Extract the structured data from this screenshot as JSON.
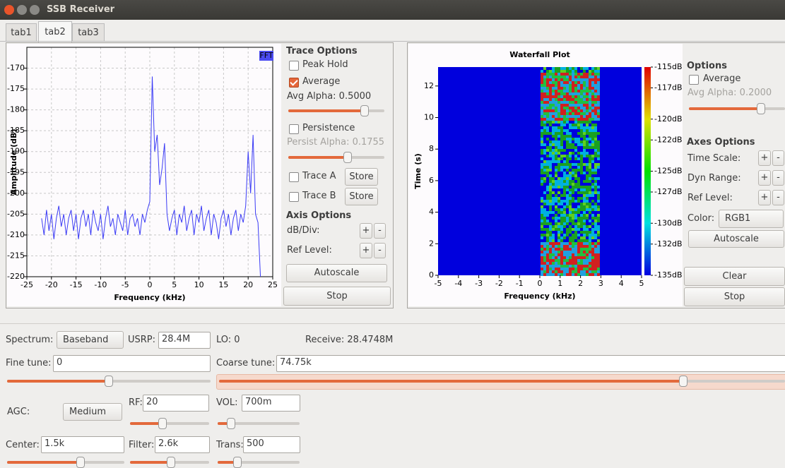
{
  "ui": {
    "window_title": "SSB Receiver",
    "tabs": [
      "tab1",
      "tab2",
      "tab3"
    ],
    "fft_options": {
      "title": "Trace Options",
      "peak_hold": {
        "label": "Peak Hold",
        "checked": false
      },
      "average": {
        "label": "Average",
        "checked": true
      },
      "avg_alpha": "Avg Alpha: 0.5000",
      "persistence": {
        "label": "Persistence",
        "checked": false
      },
      "persist_alpha": "Persist Alpha: 0.1755",
      "trace_a": {
        "label": "Trace A",
        "checked": false
      },
      "store_a": "Store",
      "trace_b": {
        "label": "Trace B",
        "checked": false
      },
      "store_b": "Store",
      "axis_options": "Axis Options",
      "db_div": "dB/Div:",
      "plus": "+",
      "minus": "-",
      "ref_level": "Ref Level:",
      "autoscale": "Autoscale",
      "stop": "Stop"
    },
    "waterfall_options": {
      "options": "Options",
      "average": {
        "label": "Average",
        "checked": false
      },
      "avg_alpha": "Avg Alpha: 0.2000",
      "axes_options": "Axes Options",
      "time_scale": "Time Scale:",
      "dyn_range": "Dyn Range:",
      "ref_level": "Ref Level:",
      "color_label": "Color:",
      "color_value": "RGB1",
      "autoscale": "Autoscale",
      "clear": "Clear",
      "stop": "Stop"
    },
    "controls": {
      "spectrum_label": "Spectrum:",
      "spectrum_value": "Baseband",
      "usrp_label": "USRP:",
      "usrp_value": "28.4M",
      "lo": "LO: 0",
      "receive": "Receive: 28.4748M",
      "fine_tune_label": "Fine tune:",
      "fine_tune_value": "0",
      "coarse_tune_label": "Coarse tune:",
      "coarse_tune_value": "74.75k",
      "agc_label": "AGC:",
      "agc_value": "Medium",
      "rf_label": "RF:",
      "rf_value": "20",
      "vol_label": "VOL:",
      "vol_value": "700m",
      "center_label": "Center:",
      "center_value": "1.5k",
      "filter_label": "Filter:",
      "filter_value": "2.6k",
      "trans_label": "Trans:",
      "trans_value": "500"
    }
  },
  "chart_data": [
    {
      "type": "line",
      "badge": "FFT",
      "xlabel": "Frequency (kHz)",
      "ylabel": "Amplitude (dB)",
      "xlim": [
        -25,
        25
      ],
      "ylim": [
        -220,
        -165
      ],
      "xticks": [
        -25,
        -20,
        -15,
        -10,
        -5,
        0,
        5,
        10,
        15,
        20,
        25
      ],
      "yticks": [
        -220,
        -215,
        -210,
        -205,
        -200,
        -195,
        -190,
        -185,
        -180,
        -175,
        -170
      ],
      "grid": true,
      "color": "#3b3bf5",
      "x": [
        -22,
        -21.5,
        -21,
        -20.5,
        -20,
        -19.5,
        -19,
        -18.5,
        -18,
        -17.5,
        -17,
        -16.5,
        -16,
        -15.5,
        -15,
        -14.5,
        -14,
        -13.5,
        -13,
        -12.5,
        -12,
        -11.5,
        -11,
        -10.5,
        -10,
        -9.5,
        -9,
        -8.5,
        -8,
        -7.5,
        -7,
        -6.5,
        -6,
        -5.5,
        -5,
        -4.5,
        -4,
        -3.5,
        -3,
        -2.5,
        -2,
        -1.5,
        -1,
        -0.5,
        0,
        0.5,
        1,
        1.5,
        2,
        2.5,
        3,
        3.5,
        4,
        4.5,
        5,
        5.5,
        6,
        6.5,
        7,
        7.5,
        8,
        8.5,
        9,
        9.5,
        10,
        10.5,
        11,
        11.5,
        12,
        12.5,
        13,
        13.5,
        14,
        14.5,
        15,
        15.5,
        16,
        16.5,
        17,
        17.5,
        18,
        18.5,
        19,
        19.5,
        20,
        20.5,
        21,
        21.5,
        22,
        22.5
      ],
      "values": [
        -206,
        -210,
        -204,
        -209,
        -205,
        -211,
        -206,
        -203,
        -208,
        -205,
        -210,
        -206,
        -204,
        -209,
        -205,
        -211,
        -206,
        -204,
        -208,
        -205,
        -210,
        -204,
        -207,
        -209,
        -205,
        -211,
        -206,
        -203,
        -208,
        -206,
        -210,
        -205,
        -207,
        -209,
        -204,
        -210,
        -206,
        -205,
        -208,
        -206,
        -210,
        -205,
        -207,
        -204,
        -202,
        -172,
        -190,
        -186,
        -198,
        -194,
        -188,
        -205,
        -209,
        -206,
        -204,
        -210,
        -205,
        -207,
        -203,
        -209,
        -206,
        -204,
        -210,
        -205,
        -207,
        -203,
        -209,
        -206,
        -204,
        -210,
        -205,
        -207,
        -211,
        -206,
        -204,
        -208,
        -205,
        -210,
        -206,
        -204,
        -209,
        -205,
        -207,
        -203,
        -190,
        -200,
        -186,
        -205,
        -207,
        -220
      ]
    },
    {
      "type": "waterfall",
      "title": "Waterfall Plot",
      "xlabel": "Frequency (kHz)",
      "ylabel": "Time (s)",
      "xlim": [
        -5,
        5
      ],
      "ylim": [
        0,
        13.2
      ],
      "xticks": [
        -5,
        -4,
        -3,
        -2,
        -1,
        0,
        1,
        2,
        3,
        4,
        5
      ],
      "yticks": [
        0,
        2,
        4,
        6,
        8,
        10,
        12
      ],
      "background": "#0000dd",
      "colorbar": {
        "lim": [
          -135,
          -115
        ],
        "ticks": [
          {
            "value": -115,
            "label": "-115dB"
          },
          {
            "value": -117,
            "label": "-117dB"
          },
          {
            "value": -120,
            "label": "-120dB"
          },
          {
            "value": -122,
            "label": "-122dB"
          },
          {
            "value": -125,
            "label": "-125dB"
          },
          {
            "value": -127,
            "label": "-127dB"
          },
          {
            "value": -130,
            "label": "-130dB"
          },
          {
            "value": -132,
            "label": "-132dB"
          },
          {
            "value": -135,
            "label": "-135dB"
          }
        ],
        "colors": [
          "#e00000",
          "#e0e000",
          "#00e000",
          "#00e0e0",
          "#0000e0"
        ]
      }
    }
  ]
}
